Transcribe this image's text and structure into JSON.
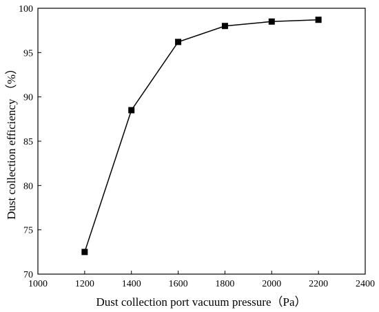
{
  "chart_data": {
    "type": "line",
    "xlabel": "Dust collection port vacuum pressure（Pa）",
    "ylabel": "Dust collection efficiency （%）",
    "xlim": [
      1000,
      2400
    ],
    "ylim": [
      70,
      100
    ],
    "x_ticks": [
      1000,
      1200,
      1400,
      1600,
      1800,
      2000,
      2200,
      2400
    ],
    "y_ticks": [
      70,
      75,
      80,
      85,
      90,
      95,
      100
    ],
    "grid": false,
    "marker": "square",
    "series": [
      {
        "x": [
          1200,
          1400,
          1600,
          1800,
          2000,
          2200
        ],
        "y": [
          72.5,
          88.5,
          96.2,
          98.0,
          98.5,
          98.7
        ]
      }
    ]
  }
}
